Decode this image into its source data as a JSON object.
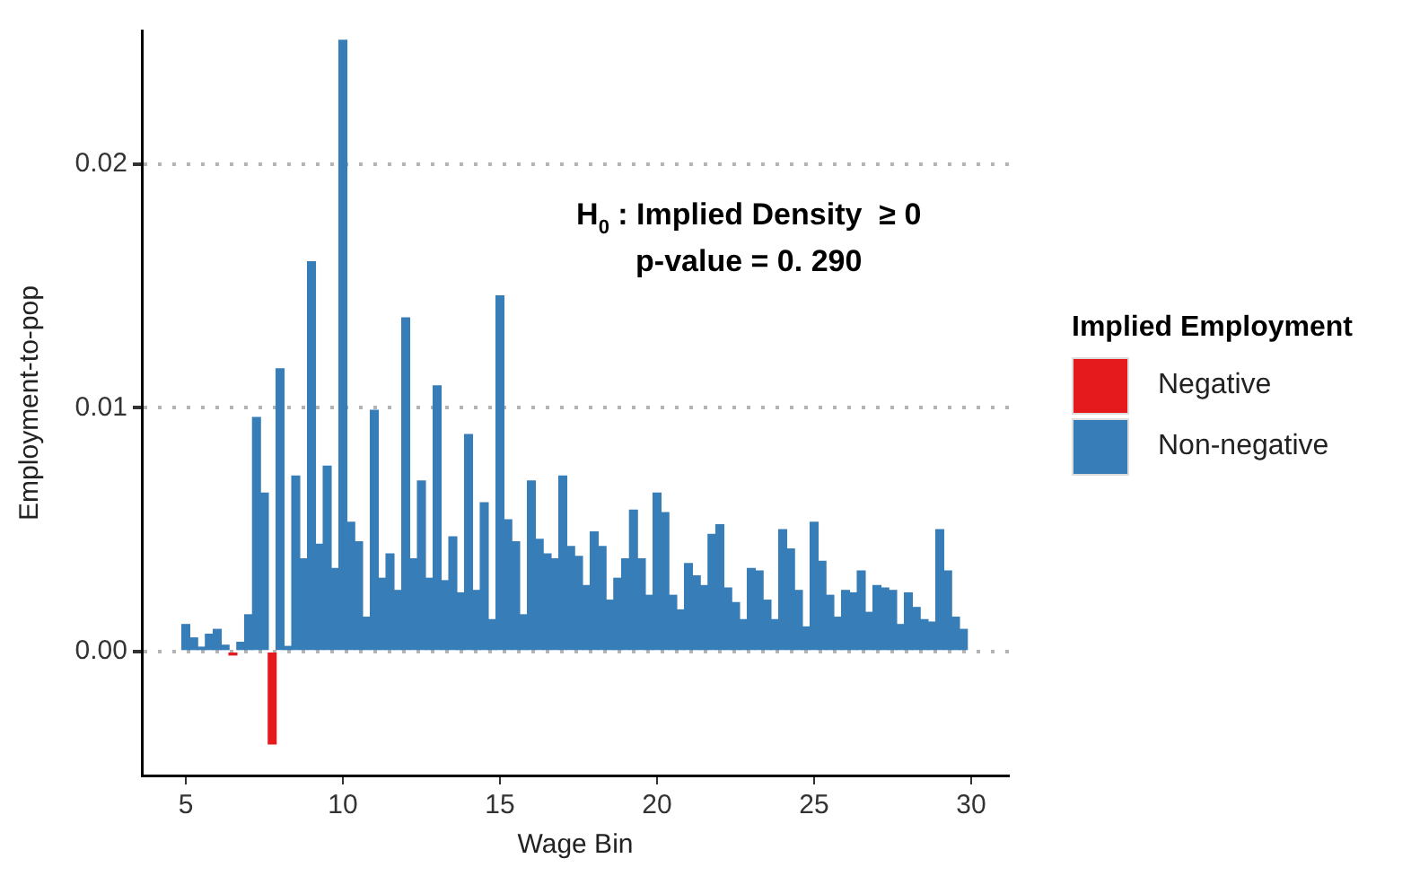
{
  "chart_data": {
    "type": "bar",
    "xlabel": "Wage Bin",
    "ylabel": "Employment-to-pop",
    "legend_title": "Implied Employment",
    "legend": "right",
    "grid": "y",
    "stacked": true,
    "annotations": [
      "H$_{0}$ : Implied Density  ≥ 0",
      "p-value = 0. 290"
    ],
    "x": [
      5,
      5.25,
      5.5,
      5.75,
      6,
      6.25,
      6.5,
      6.75,
      7,
      7.25,
      7.5,
      7.75,
      8,
      8.25,
      8.5,
      8.75,
      9,
      9.25,
      9.5,
      9.75,
      10,
      10.25,
      10.5,
      10.75,
      11,
      11.25,
      11.5,
      11.75,
      12,
      12.25,
      12.5,
      12.75,
      13,
      13.25,
      13.5,
      13.75,
      14,
      14.25,
      14.5,
      14.75,
      15,
      15.25,
      15.5,
      15.75,
      16,
      16.25,
      16.5,
      16.75,
      17,
      17.25,
      17.5,
      17.75,
      18,
      18.25,
      18.5,
      18.75,
      19,
      19.25,
      19.5,
      19.75,
      20,
      20.25,
      20.5,
      20.75,
      21,
      21.25,
      21.5,
      21.75,
      22,
      22.25,
      22.5,
      22.75,
      23,
      23.25,
      23.5,
      23.75,
      24,
      24.25,
      24.5,
      24.75,
      25,
      25.25,
      25.5,
      25.75,
      26,
      26.25,
      26.5,
      26.75,
      27,
      27.25,
      27.5,
      27.75,
      28,
      28.25,
      28.5,
      28.75,
      29,
      29.25,
      29.5,
      29.75
    ],
    "xlim": [
      3.6,
      31.2
    ],
    "xticks": [
      5,
      10,
      15,
      20,
      25,
      30
    ],
    "ylim": [
      -0.0051,
      0.0255
    ],
    "yticks": [
      {
        "value": 0,
        "label": "0.00"
      },
      {
        "value": 0.01,
        "label": "0.01"
      },
      {
        "value": 0.02,
        "label": "0.02"
      }
    ],
    "series": [
      {
        "name": "Negative",
        "color": "#e41a1c",
        "values": [
          null,
          null,
          null,
          null,
          null,
          null,
          -0.00015,
          null,
          null,
          null,
          null,
          -0.0038,
          null,
          null,
          null,
          null,
          null,
          null,
          null,
          null,
          null,
          null,
          null,
          null,
          null,
          null,
          null,
          null,
          null,
          null,
          null,
          null,
          null,
          null,
          null,
          null,
          null,
          null,
          null,
          null,
          null,
          null,
          null,
          null,
          null,
          null,
          null,
          null,
          null,
          null,
          null,
          null,
          null,
          null,
          null,
          null,
          null,
          null,
          null,
          null,
          null,
          null,
          null,
          null,
          null,
          null,
          null,
          null,
          null,
          null,
          null,
          null,
          null,
          null,
          null,
          null,
          null,
          null,
          null,
          null,
          null,
          null,
          null,
          null,
          null,
          null,
          null,
          null,
          null,
          null,
          null,
          null,
          null,
          null,
          null,
          null,
          null,
          null,
          null,
          null
        ]
      },
      {
        "name": "Non-negative",
        "color": "#377eb8",
        "values": [
          0.0011,
          0.00055,
          0.00017,
          0.0007,
          0.0009,
          0.00025,
          null,
          0.00037,
          0.0015,
          0.0096,
          0.0065,
          null,
          0.0116,
          0.0002,
          0.0072,
          0.0038,
          0.016,
          0.0044,
          0.0076,
          0.0034,
          0.0251,
          0.0053,
          0.0045,
          0.0014,
          0.0099,
          0.003,
          0.004,
          0.0025,
          0.0137,
          0.0038,
          0.007,
          0.003,
          0.0109,
          0.0029,
          0.0047,
          0.0024,
          0.0089,
          0.0025,
          0.0061,
          0.0013,
          0.0146,
          0.0054,
          0.0045,
          0.0015,
          0.007,
          0.0046,
          0.004,
          0.0038,
          0.0072,
          0.0043,
          0.0039,
          0.0027,
          0.0049,
          0.0043,
          0.0021,
          0.003,
          0.0038,
          0.0058,
          0.0038,
          0.0023,
          0.0065,
          0.0057,
          0.0023,
          0.0017,
          0.0036,
          0.0031,
          0.0027,
          0.0048,
          0.0052,
          0.0026,
          0.002,
          0.0013,
          0.0034,
          0.0033,
          0.0021,
          0.0013,
          0.005,
          0.0042,
          0.0025,
          0.001,
          0.0053,
          0.0037,
          0.0023,
          0.0014,
          0.0025,
          0.0024,
          0.0033,
          0.0016,
          0.0027,
          0.0026,
          0.0025,
          0.0011,
          0.0024,
          0.0018,
          0.0013,
          0.0012,
          0.005,
          0.0033,
          0.0014,
          0.0009
        ]
      }
    ]
  }
}
